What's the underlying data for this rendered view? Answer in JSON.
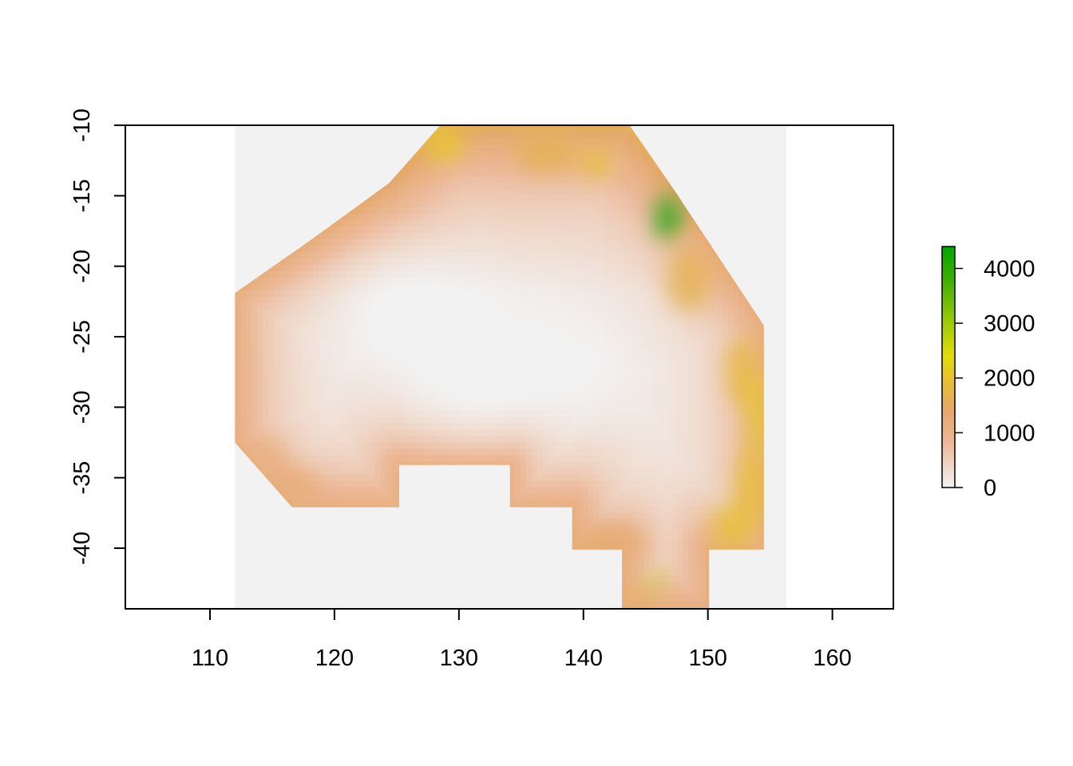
{
  "chart_data": {
    "type": "heatmap",
    "title": "",
    "xlabel": "",
    "ylabel": "",
    "xlim": [
      103.2,
      164.9
    ],
    "ylim": [
      -44.3,
      -10
    ],
    "x_ticks": [
      {
        "value": 110,
        "label": "110"
      },
      {
        "value": 120,
        "label": "120"
      },
      {
        "value": 130,
        "label": "130"
      },
      {
        "value": 140,
        "label": "140"
      },
      {
        "value": 150,
        "label": "150"
      },
      {
        "value": 160,
        "label": "160"
      }
    ],
    "y_ticks": [
      {
        "value": -10,
        "label": "-10"
      },
      {
        "value": -15,
        "label": "-15"
      },
      {
        "value": -20,
        "label": "-20"
      },
      {
        "value": -25,
        "label": "-25"
      },
      {
        "value": -30,
        "label": "-30"
      },
      {
        "value": -35,
        "label": "-35"
      },
      {
        "value": -40,
        "label": "-40"
      }
    ],
    "raster_extent": {
      "xmin": 112,
      "xmax": 156.3,
      "ymin": -44.3,
      "ymax": -10
    },
    "na_color": "#f2f2f2",
    "data_region": [
      [
        128.5,
        -10
      ],
      [
        143.7,
        -10
      ],
      [
        147.3,
        -14.6
      ],
      [
        154.5,
        -24.2
      ],
      [
        154.5,
        -40.1
      ],
      [
        150.1,
        -40.1
      ],
      [
        150.1,
        -44.3
      ],
      [
        143.1,
        -44.3
      ],
      [
        143.1,
        -40.1
      ],
      [
        139.1,
        -40.1
      ],
      [
        139.1,
        -37.1
      ],
      [
        134.1,
        -37.1
      ],
      [
        134.1,
        -34.1
      ],
      [
        125.2,
        -34.1
      ],
      [
        125.2,
        -37.1
      ],
      [
        116.6,
        -37.1
      ],
      [
        112,
        -32.5
      ],
      [
        112,
        -21.9
      ],
      [
        118,
        -18.2
      ],
      [
        124.4,
        -14.1
      ]
    ],
    "color_scale": {
      "min": 0,
      "max": 4400,
      "stops": [
        {
          "value": 0,
          "color": "#f2f2f2"
        },
        {
          "value": 800,
          "color": "#ecb99a"
        },
        {
          "value": 1400,
          "color": "#e5a86b"
        },
        {
          "value": 2000,
          "color": "#e6c32d"
        },
        {
          "value": 2400,
          "color": "#e4dc0b"
        },
        {
          "value": 3000,
          "color": "#9ecb05"
        },
        {
          "value": 3800,
          "color": "#3eae02"
        },
        {
          "value": 4400,
          "color": "#00a600"
        }
      ],
      "legend_ticks": [
        {
          "value": 0,
          "label": "0"
        },
        {
          "value": 1000,
          "label": "1000"
        },
        {
          "value": 2000,
          "label": "2000"
        },
        {
          "value": 3000,
          "label": "3000"
        },
        {
          "value": 4000,
          "label": "4000"
        }
      ]
    },
    "field_base": [
      {
        "lon": 125,
        "lat": -22,
        "value": 250
      },
      {
        "lon": 138,
        "lat": -27.5,
        "value": 150
      },
      {
        "lon": 131,
        "lat": -30,
        "value": 300
      }
    ],
    "hotspots": [
      {
        "lon": 146.8,
        "lat": -16.6,
        "value": 4400,
        "rx": 0.9,
        "ry": 1.7
      },
      {
        "lon": 145.8,
        "lat": -42.4,
        "value": 2700,
        "rx": 0.45,
        "ry": 0.9
      },
      {
        "lon": 128.8,
        "lat": -11.3,
        "value": 2100,
        "rx": 1.5,
        "ry": 1.3
      },
      {
        "lon": 137,
        "lat": -12,
        "value": 1600,
        "rx": 2.5,
        "ry": 1.4
      },
      {
        "lon": 141,
        "lat": -12.7,
        "value": 2000,
        "rx": 1.2,
        "ry": 1.0
      },
      {
        "lon": 148.5,
        "lat": -21,
        "value": 1600,
        "rx": 1.8,
        "ry": 2.3
      },
      {
        "lon": 152.8,
        "lat": -27.5,
        "value": 1800,
        "rx": 1.3,
        "ry": 2.5
      },
      {
        "lon": 154,
        "lat": -30.5,
        "value": 2100,
        "rx": 0.8,
        "ry": 2.8
      },
      {
        "lon": 153.5,
        "lat": -35.5,
        "value": 1900,
        "rx": 1.2,
        "ry": 2.8
      },
      {
        "lon": 152,
        "lat": -38.5,
        "value": 1900,
        "rx": 1.8,
        "ry": 1.6
      },
      {
        "lon": 117,
        "lat": -35.5,
        "value": 1300,
        "rx": 1.8,
        "ry": 1.2
      },
      {
        "lon": 114.5,
        "lat": -33.5,
        "value": 1100,
        "rx": 1.6,
        "ry": 1.3
      },
      {
        "lon": 142,
        "lat": -39.5,
        "value": 1300,
        "rx": 3,
        "ry": 1.3
      },
      {
        "lon": 144.3,
        "lat": -43.5,
        "value": 1500,
        "rx": 1.0,
        "ry": 1.2
      }
    ]
  }
}
